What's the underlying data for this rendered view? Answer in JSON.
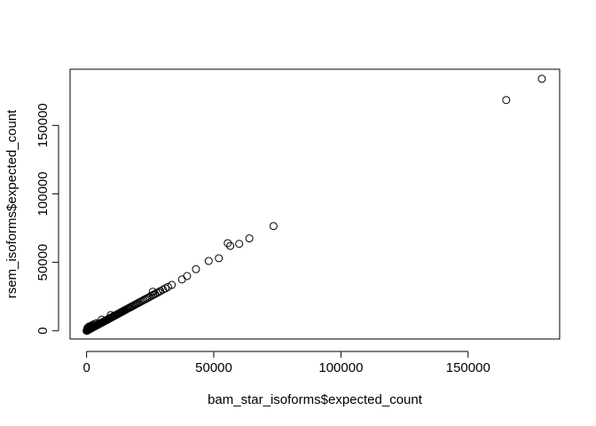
{
  "chart_data": {
    "type": "scatter",
    "title": "",
    "xlabel": "bam_star_isoforms$expected_count",
    "ylabel": "rsem_isoforms$expected_count",
    "xlim": [
      -6500,
      186000
    ],
    "ylim": [
      -6000,
      191000
    ],
    "xticks": [
      0,
      50000,
      100000,
      150000
    ],
    "xtick_labels": [
      "0",
      "50000",
      "100000",
      "150000"
    ],
    "yticks": [
      0,
      50000,
      100000,
      150000
    ],
    "ytick_labels": [
      "0",
      "50000",
      "100000",
      "150000"
    ],
    "grid": false,
    "legend": "none",
    "marker": "open-circle",
    "series": [
      {
        "x": [
          0,
          150,
          300,
          500,
          700,
          900,
          1100,
          1300,
          1500,
          1800,
          2100,
          2400,
          2700,
          3000,
          3300,
          3600,
          3900,
          4200,
          4500,
          4800,
          5100,
          5400,
          5700,
          6000,
          6300,
          6600,
          6900,
          7200,
          7500,
          7800,
          8100,
          8400,
          8700,
          9000,
          9300,
          9600,
          9900,
          10200,
          10500,
          10800,
          11100,
          11400,
          11700,
          12000,
          12300,
          12600,
          12900,
          13200,
          13500,
          13800,
          14100,
          14400,
          14700,
          15000,
          15400,
          15800,
          16200,
          16600,
          17000,
          17400,
          17800,
          18200,
          18700,
          19200,
          19700,
          20200,
          20700,
          21200,
          21800,
          22400,
          23000,
          23600,
          24200,
          24800,
          25500,
          26200,
          26900,
          27600,
          28300,
          29000,
          30000,
          31000,
          32000,
          33500,
          37500,
          39500,
          43000,
          48000,
          52000,
          55500,
          56500,
          60000,
          64000,
          73500,
          165000,
          179000,
          200,
          400,
          600,
          800,
          1000,
          1200,
          1600,
          2000,
          2500,
          3000,
          3500,
          4000,
          9500,
          6000,
          26000
        ],
        "y": [
          0,
          150,
          300,
          500,
          700,
          900,
          1100,
          1300,
          1500,
          1800,
          2100,
          2400,
          2700,
          3000,
          3300,
          3600,
          3900,
          4200,
          4500,
          4800,
          5100,
          5400,
          5700,
          6000,
          6300,
          6600,
          6900,
          7200,
          7500,
          7800,
          8100,
          8400,
          8700,
          9000,
          9300,
          9600,
          9900,
          10200,
          10500,
          10800,
          11100,
          11400,
          11700,
          12000,
          12300,
          12600,
          12900,
          13200,
          13500,
          13800,
          14100,
          14400,
          14700,
          15000,
          15400,
          15800,
          16200,
          16600,
          17000,
          17400,
          17800,
          18200,
          18700,
          19200,
          19700,
          20200,
          20700,
          21200,
          21800,
          22400,
          23000,
          23600,
          24200,
          24800,
          25500,
          26200,
          26900,
          27600,
          28300,
          29000,
          30000,
          31000,
          32000,
          33500,
          37500,
          40000,
          45000,
          51000,
          53000,
          64000,
          62000,
          63500,
          67500,
          76500,
          168500,
          184000,
          1200,
          2200,
          1800,
          2600,
          3200,
          1600,
          3400,
          2800,
          4500,
          4200,
          5200,
          5600,
          11500,
          8200,
          28500
        ]
      }
    ]
  }
}
